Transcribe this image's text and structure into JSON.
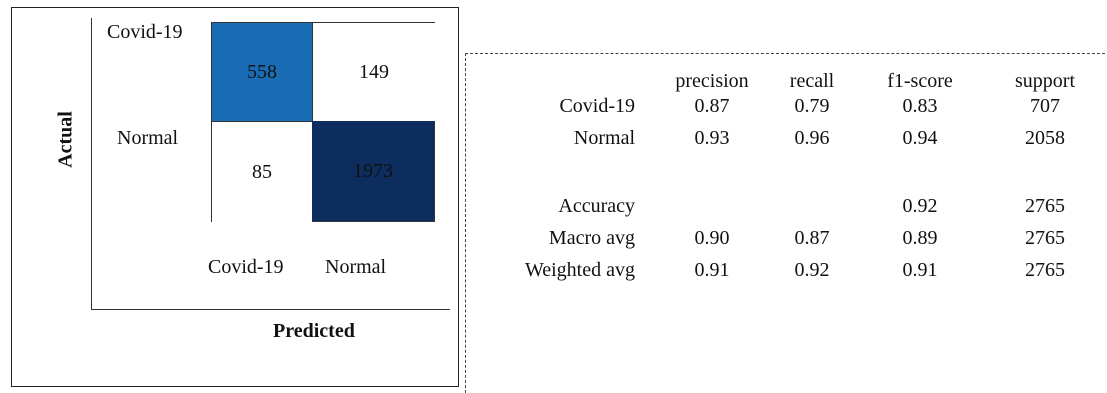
{
  "chart_data": [
    {
      "type": "heatmap",
      "xlabel": "Predicted",
      "ylabel": "Actual",
      "x_categories": [
        "Covid-19",
        "Normal"
      ],
      "y_categories": [
        "Covid-19",
        "Normal"
      ],
      "values": [
        [
          558,
          149
        ],
        [
          85,
          1973
        ]
      ],
      "cell_colors": [
        [
          "#1a6db5",
          "#ffffff"
        ],
        [
          "#ffffff",
          "#0d2d5e"
        ]
      ],
      "cell_text_colors": [
        [
          "#111111",
          "#111111"
        ],
        [
          "#111111",
          "#111111"
        ]
      ]
    },
    {
      "type": "table",
      "columns": [
        "precision",
        "recall",
        "f1-score",
        "support"
      ],
      "rows": [
        {
          "label": "Covid-19",
          "values": [
            "0.87",
            "0.79",
            "0.83",
            "707"
          ]
        },
        {
          "label": "Normal",
          "values": [
            "0.93",
            "0.96",
            "0.94",
            "2058"
          ]
        },
        {
          "label": "Accuracy",
          "values": [
            "",
            "",
            "0.92",
            "2765"
          ]
        },
        {
          "label": "Macro avg",
          "values": [
            "0.90",
            "0.87",
            "0.89",
            "2765"
          ]
        },
        {
          "label": "Weighted avg",
          "values": [
            "0.91",
            "0.92",
            "0.91",
            "2765"
          ]
        }
      ]
    }
  ]
}
